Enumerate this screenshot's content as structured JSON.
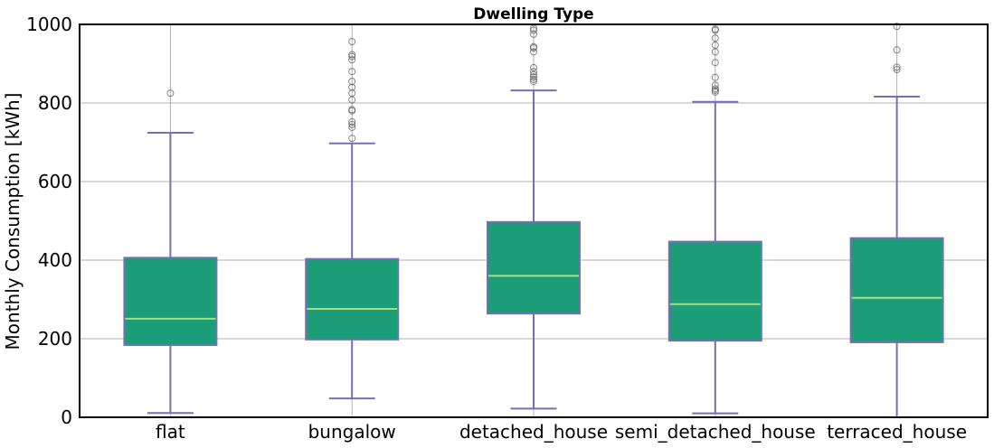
{
  "chart_data": {
    "type": "box",
    "title": "Dwelling Type",
    "xlabel": "",
    "ylabel": "Monthly Consumption [kWh]",
    "ylim": [
      0,
      1000
    ],
    "yticks": [
      "0",
      "200",
      "400",
      "600",
      "800",
      "1000"
    ],
    "grid": true,
    "colors": {
      "box_fill": "#1b9e77",
      "box_edge": "#7570b3",
      "whisker": "#7570b3",
      "median": "#a6e080",
      "flier": "#555555"
    },
    "categories": [
      "flat",
      "bungalow",
      "detached_house",
      "semi_detached_house",
      "terraced_house"
    ],
    "boxes": [
      {
        "q1": 184,
        "median": 251,
        "q3": 406,
        "whisker_low": 11,
        "whisker_high": 724,
        "fliers": [
          825
        ]
      },
      {
        "q1": 198,
        "median": 276,
        "q3": 403,
        "whisker_low": 48,
        "whisker_high": 697,
        "fliers": [
          710,
          738,
          745,
          752,
          780,
          783,
          808,
          825,
          840,
          855,
          880,
          910,
          918,
          923,
          956
        ]
      },
      {
        "q1": 264,
        "median": 360,
        "q3": 497,
        "whisker_low": 22,
        "whisker_high": 832,
        "fliers": [
          855,
          860,
          866,
          872,
          880,
          890,
          930,
          940,
          943,
          975,
          985,
          990
        ]
      },
      {
        "q1": 195,
        "median": 288,
        "q3": 447,
        "whisker_low": 10,
        "whisker_high": 803,
        "fliers": [
          828,
          832,
          836,
          845,
          865,
          903,
          930,
          947,
          965,
          985,
          988
        ]
      },
      {
        "q1": 191,
        "median": 304,
        "q3": 456,
        "whisker_low": 0,
        "whisker_high": 816,
        "fliers": [
          885,
          891,
          935,
          995
        ]
      }
    ]
  }
}
